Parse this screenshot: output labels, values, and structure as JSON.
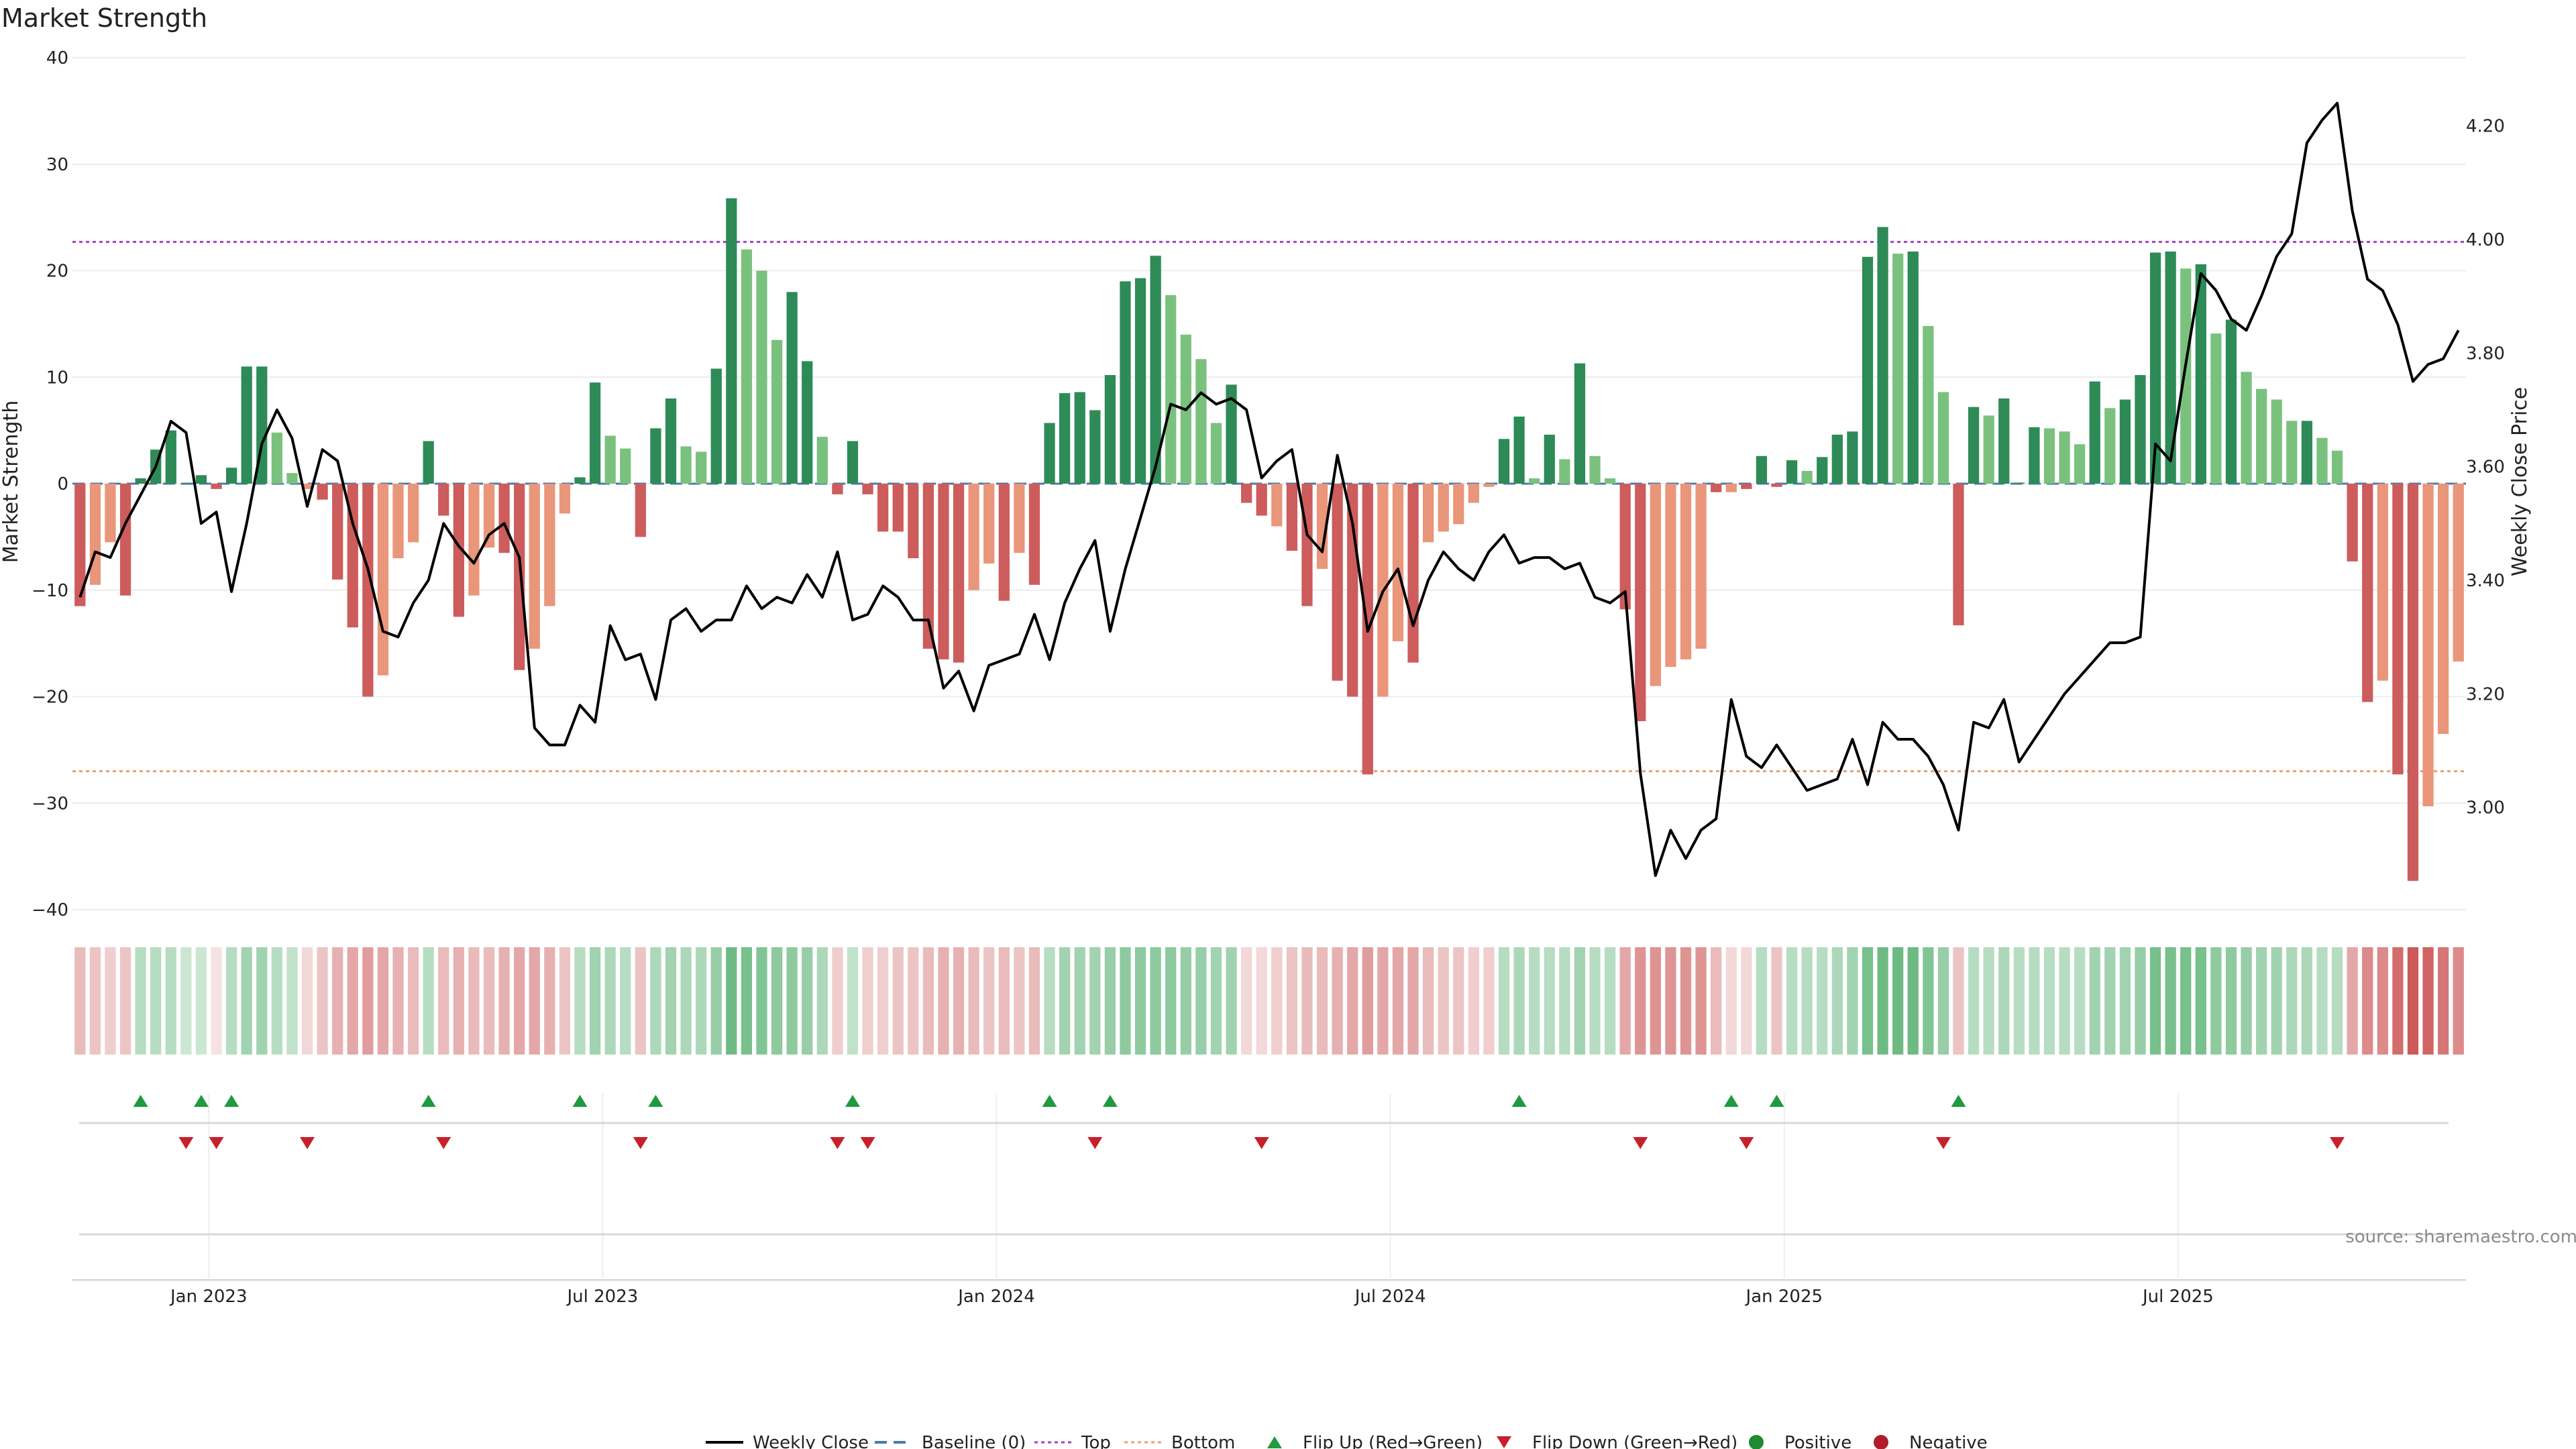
{
  "chart_data": {
    "type": "bar",
    "title": "Market Strength",
    "ylabel": "Market Strength",
    "y2label": "Weekly Close Price",
    "ylim": [
      -40,
      40
    ],
    "y2lim": [
      2.82,
      4.32
    ],
    "yticks": [
      40,
      30,
      20,
      10,
      0,
      -10,
      -20,
      -30,
      -40
    ],
    "y2ticks": [
      4.2,
      4.0,
      3.8,
      3.6,
      3.4,
      3.2,
      3.0
    ],
    "y2tick_labels": [
      "4.20",
      "4.00",
      "3.80",
      "3.60",
      "3.40",
      "3.20",
      "3.00"
    ],
    "xtick_labels": [
      "Jan 2023",
      "Jul 2023",
      "Jan 2024",
      "Jul 2024",
      "Jan 2025",
      "Jul 2025"
    ],
    "xtick_weeks": [
      9,
      35,
      61,
      87,
      113,
      139
    ],
    "top_line": 22.7,
    "bottom_line": -27,
    "colors": {
      "strong_pos": "#2e8b57",
      "weak_pos": "#7bc17e",
      "strong_neg": "#cd5c5c",
      "weak_neg": "#e9967a",
      "price": "#000000",
      "baseline": "#4a7aa8",
      "top": "#a040c8",
      "bottom": "#e9a070",
      "flip_up": "#1f9a3f",
      "flip_down": "#c8202a",
      "positive_dot": "#1f8a2f",
      "negative_dot": "#b01c2c"
    },
    "strength": [
      -11.5,
      -9.5,
      -5.5,
      -10.5,
      0.5,
      3.2,
      5,
      0,
      0.8,
      -0.5,
      1.5,
      11,
      11,
      4.8,
      1,
      -0.5,
      -1.5,
      -9,
      -13.5,
      -20,
      -18,
      -7,
      -5.5,
      4,
      -3,
      -12.5,
      -10.5,
      -6,
      -6.5,
      -17.5,
      -15.5,
      -11.5,
      -2.8,
      0.6,
      9.5,
      4.5,
      3.3,
      -5,
      5.2,
      8,
      3.5,
      3,
      10.8,
      26.8,
      22,
      20,
      13.5,
      18,
      11.5,
      4.4,
      -1,
      4,
      -1,
      -4.5,
      -4.5,
      -7,
      -15.5,
      -16.5,
      -16.8,
      -10,
      -7.5,
      -11,
      -6.5,
      -9.5,
      5.7,
      8.5,
      8.6,
      6.9,
      10.2,
      19,
      19.3,
      21.4,
      17.7,
      14,
      11.7,
      5.7,
      9.3,
      -1.8,
      -3,
      -4,
      -6.3,
      -11.5,
      -8,
      -18.5,
      -20,
      -27.3,
      -20,
      -14.8,
      -16.8,
      -5.5,
      -4.5,
      -3.8,
      -1.8,
      -0.3,
      4.2,
      6.3,
      0.5,
      4.6,
      2.3,
      11.3,
      2.6,
      0.5,
      -11.8,
      -22.3,
      -19,
      -17.2,
      -16.5,
      -15.5,
      -0.8,
      -0.8,
      -0.5,
      2.6,
      -0.3,
      2.2,
      1.2,
      2.5,
      4.6,
      4.9,
      21.3,
      24.1,
      21.6,
      21.8,
      14.8,
      8.6,
      -13.3,
      7.2,
      6.4,
      8,
      0.1,
      5.3,
      5.2,
      4.9,
      3.7,
      9.6,
      7.1,
      7.9,
      10.2,
      21.7,
      21.8,
      20.2,
      20.6,
      14.1,
      15.4,
      10.5,
      8.9,
      7.9,
      5.9,
      5.9,
      4.3,
      3.1,
      -7.3,
      -20.5,
      -18.5,
      -27.3,
      -37.3,
      -30.3,
      -23.5,
      -16.7
    ],
    "strength_class": [
      "sn",
      "wn",
      "wn",
      "sn",
      "sp",
      "sp",
      "sp",
      "sp",
      "sp",
      "sn",
      "sp",
      "sp",
      "sp",
      "wp",
      "wp",
      "wn",
      "sn",
      "sn",
      "sn",
      "sn",
      "wn",
      "wn",
      "wn",
      "sp",
      "sn",
      "sn",
      "wn",
      "wn",
      "sn",
      "sn",
      "wn",
      "wn",
      "wn",
      "sp",
      "sp",
      "wp",
      "wp",
      "sn",
      "sp",
      "sp",
      "wp",
      "wp",
      "sp",
      "sp",
      "wp",
      "wp",
      "wp",
      "sp",
      "sp",
      "wp",
      "sn",
      "sp",
      "sn",
      "sn",
      "sn",
      "sn",
      "sn",
      "sn",
      "sn",
      "wn",
      "wn",
      "sn",
      "wn",
      "sn",
      "sp",
      "sp",
      "sp",
      "sp",
      "sp",
      "sp",
      "sp",
      "sp",
      "wp",
      "wp",
      "wp",
      "wp",
      "sp",
      "sn",
      "sn",
      "wn",
      "sn",
      "sn",
      "wn",
      "sn",
      "sn",
      "sn",
      "wn",
      "wn",
      "sn",
      "wn",
      "wn",
      "wn",
      "wn",
      "wn",
      "sp",
      "sp",
      "wp",
      "sp",
      "wp",
      "sp",
      "wp",
      "wp",
      "sn",
      "sn",
      "wn",
      "wn",
      "wn",
      "wn",
      "sn",
      "wn",
      "sn",
      "sp",
      "sn",
      "sp",
      "wp",
      "sp",
      "sp",
      "sp",
      "sp",
      "sp",
      "wp",
      "sp",
      "wp",
      "wp",
      "sn",
      "sp",
      "wp",
      "sp",
      "sp",
      "sp",
      "wp",
      "wp",
      "wp",
      "sp",
      "wp",
      "sp",
      "sp",
      "sp",
      "sp",
      "wp",
      "sp",
      "wp",
      "sp",
      "wp",
      "wp",
      "wp",
      "wp",
      "sp",
      "wp",
      "wp",
      "sn",
      "sn",
      "wn",
      "sn",
      "sn",
      "wn",
      "wn",
      "wn"
    ],
    "weekly_close": [
      3.37,
      3.45,
      3.44,
      3.5,
      3.55,
      3.6,
      3.68,
      3.66,
      3.5,
      3.52,
      3.38,
      3.5,
      3.64,
      3.7,
      3.65,
      3.53,
      3.63,
      3.61,
      3.5,
      3.42,
      3.31,
      3.3,
      3.36,
      3.4,
      3.5,
      3.46,
      3.43,
      3.48,
      3.5,
      3.44,
      3.14,
      3.11,
      3.11,
      3.18,
      3.15,
      3.32,
      3.26,
      3.27,
      3.19,
      3.33,
      3.35,
      3.31,
      3.33,
      3.33,
      3.39,
      3.35,
      3.37,
      3.36,
      3.41,
      3.37,
      3.45,
      3.33,
      3.34,
      3.39,
      3.37,
      3.33,
      3.33,
      3.21,
      3.24,
      3.17,
      3.25,
      3.26,
      3.27,
      3.34,
      3.26,
      3.36,
      3.42,
      3.47,
      3.31,
      3.42,
      3.51,
      3.6,
      3.71,
      3.7,
      3.73,
      3.71,
      3.72,
      3.7,
      3.58,
      3.61,
      3.63,
      3.48,
      3.45,
      3.62,
      3.5,
      3.31,
      3.38,
      3.42,
      3.32,
      3.4,
      3.45,
      3.42,
      3.4,
      3.45,
      3.48,
      3.43,
      3.44,
      3.44,
      3.42,
      3.43,
      3.37,
      3.36,
      3.38,
      3.06,
      2.88,
      2.96,
      2.91,
      2.96,
      2.98,
      3.19,
      3.09,
      3.07,
      3.11,
      3.07,
      3.03,
      3.04,
      3.05,
      3.12,
      3.04,
      3.15,
      3.12,
      3.12,
      3.09,
      3.04,
      2.96,
      3.15,
      3.14,
      3.19,
      3.08,
      3.12,
      3.16,
      3.2,
      3.23,
      3.26,
      3.29,
      3.29,
      3.3,
      3.64,
      3.61,
      3.78,
      3.94,
      3.91,
      3.86,
      3.84,
      3.9,
      3.97,
      4.01,
      4.17,
      4.21,
      4.24,
      4.05,
      3.93,
      3.91,
      3.85,
      3.75,
      3.78,
      3.79,
      3.84
    ],
    "momentum_intensity": [
      0.35,
      0.3,
      0.25,
      0.3,
      0.35,
      0.35,
      0.35,
      0.25,
      0.25,
      0.15,
      0.35,
      0.45,
      0.45,
      0.35,
      0.3,
      0.2,
      0.3,
      0.4,
      0.45,
      0.5,
      0.45,
      0.4,
      0.35,
      0.35,
      0.35,
      0.4,
      0.35,
      0.35,
      0.4,
      0.45,
      0.45,
      0.4,
      0.3,
      0.35,
      0.45,
      0.4,
      0.35,
      0.3,
      0.4,
      0.45,
      0.4,
      0.4,
      0.5,
      0.7,
      0.65,
      0.6,
      0.55,
      0.55,
      0.5,
      0.4,
      0.25,
      0.3,
      0.25,
      0.25,
      0.3,
      0.3,
      0.35,
      0.4,
      0.4,
      0.35,
      0.3,
      0.35,
      0.3,
      0.35,
      0.35,
      0.45,
      0.45,
      0.45,
      0.5,
      0.55,
      0.55,
      0.55,
      0.55,
      0.5,
      0.5,
      0.45,
      0.45,
      0.2,
      0.2,
      0.25,
      0.3,
      0.35,
      0.35,
      0.4,
      0.45,
      0.5,
      0.45,
      0.45,
      0.45,
      0.35,
      0.3,
      0.3,
      0.25,
      0.25,
      0.35,
      0.4,
      0.35,
      0.35,
      0.35,
      0.45,
      0.35,
      0.35,
      0.45,
      0.55,
      0.55,
      0.55,
      0.55,
      0.55,
      0.35,
      0.2,
      0.2,
      0.35,
      0.3,
      0.35,
      0.35,
      0.35,
      0.4,
      0.45,
      0.65,
      0.7,
      0.7,
      0.7,
      0.6,
      0.5,
      0.3,
      0.35,
      0.35,
      0.4,
      0.35,
      0.35,
      0.35,
      0.35,
      0.35,
      0.45,
      0.45,
      0.45,
      0.5,
      0.65,
      0.65,
      0.65,
      0.65,
      0.55,
      0.55,
      0.5,
      0.45,
      0.45,
      0.4,
      0.4,
      0.35,
      0.35,
      0.45,
      0.6,
      0.6,
      0.75,
      0.85,
      0.8,
      0.7,
      0.6
    ],
    "flip_up_weeks": [
      4,
      8,
      10,
      23,
      33,
      38,
      51,
      64,
      68,
      95,
      109,
      112,
      124
    ],
    "flip_down_weeks": [
      7,
      9,
      15,
      24,
      37,
      50,
      52,
      67,
      78,
      103,
      110,
      123,
      149
    ],
    "legend": [
      {
        "label": "Weekly Close",
        "kind": "line",
        "color": "#000000"
      },
      {
        "label": "Baseline (0)",
        "kind": "dash",
        "color": "#4a7aa8"
      },
      {
        "label": "Top",
        "kind": "dot",
        "color": "#a040c8"
      },
      {
        "label": "Bottom",
        "kind": "dot",
        "color": "#e9a070"
      },
      {
        "label": "Flip Up (Red→Green)",
        "kind": "tri-up",
        "color": "#1f9a3f"
      },
      {
        "label": "Flip Down (Green→Red)",
        "kind": "tri-down",
        "color": "#c8202a"
      },
      {
        "label": "Positive",
        "kind": "circle",
        "color": "#1f8a2f"
      },
      {
        "label": "Negative",
        "kind": "circle",
        "color": "#b01c2c"
      }
    ],
    "source": "source: sharemaestro.com"
  }
}
